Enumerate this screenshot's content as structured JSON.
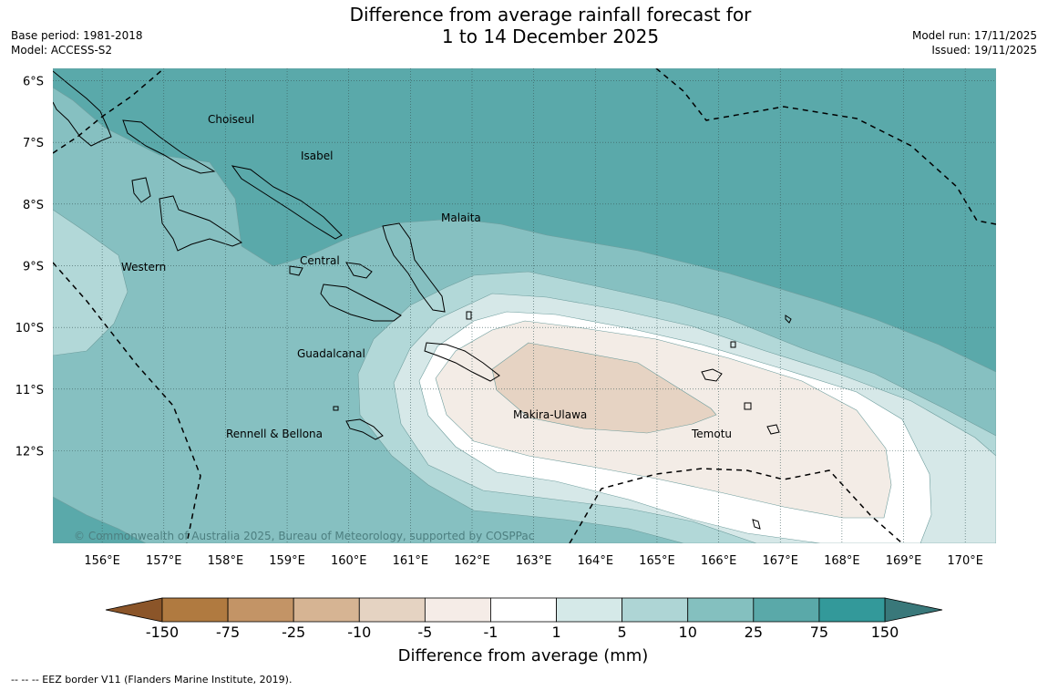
{
  "title": {
    "line1": "Difference from average rainfall forecast for",
    "line2": "1 to 14 December 2025"
  },
  "meta_left": {
    "base_period": "Base period: 1981-2018",
    "model": "Model: ACCESS-S2"
  },
  "meta_right": {
    "model_run": "Model run: 17/11/2025",
    "issued": "Issued: 19/11/2025"
  },
  "map": {
    "lon_range": [
      155.2,
      170.5
    ],
    "lat_range": [
      -13.5,
      -5.8
    ],
    "lon_ticks": [
      "156°E",
      "157°E",
      "158°E",
      "159°E",
      "160°E",
      "161°E",
      "162°E",
      "163°E",
      "164°E",
      "165°E",
      "166°E",
      "167°E",
      "168°E",
      "169°E",
      "170°E"
    ],
    "lat_ticks": [
      "6°S",
      "7°S",
      "8°S",
      "9°S",
      "10°S",
      "11°S",
      "12°S"
    ],
    "provinces": [
      "Choiseul",
      "Isabel",
      "Malaita",
      "Western",
      "Central",
      "Guadalcanal",
      "Makira-Ulawa",
      "Rennell & Bellona",
      "Temotu"
    ],
    "copyright": "© Commonwealth of Australia 2025, Bureau of Meteorology, supported by COSPPac",
    "colors": {
      "c_75_150": "#5aa9aa",
      "c_25_75": "#86c0c1",
      "c_10_25": "#b2d8d8",
      "c_5_10": "#d6e8e8",
      "c_1_5": "#ffffff",
      "c_m1_m5": "#f3ece6",
      "c_m5_m10": "#e6d3c3"
    }
  },
  "colorbar": {
    "labels": [
      "-150",
      "-75",
      "-25",
      "-10",
      "-5",
      "-1",
      "1",
      "5",
      "10",
      "25",
      "75",
      "150"
    ],
    "colors": [
      "#b07a40",
      "#c39466",
      "#d6b493",
      "#e5d3c2",
      "#f5ece7",
      "#ffffff",
      "#d5e9e8",
      "#aed5d5",
      "#84c0bf",
      "#5aa9a9",
      "#33999a"
    ],
    "low_color": "#8b5529",
    "high_color": "#39787a",
    "title": "Difference from average (mm)"
  },
  "footnote": "-- -- -- EEZ border V11 (Flanders Marine Institute, 2019)."
}
